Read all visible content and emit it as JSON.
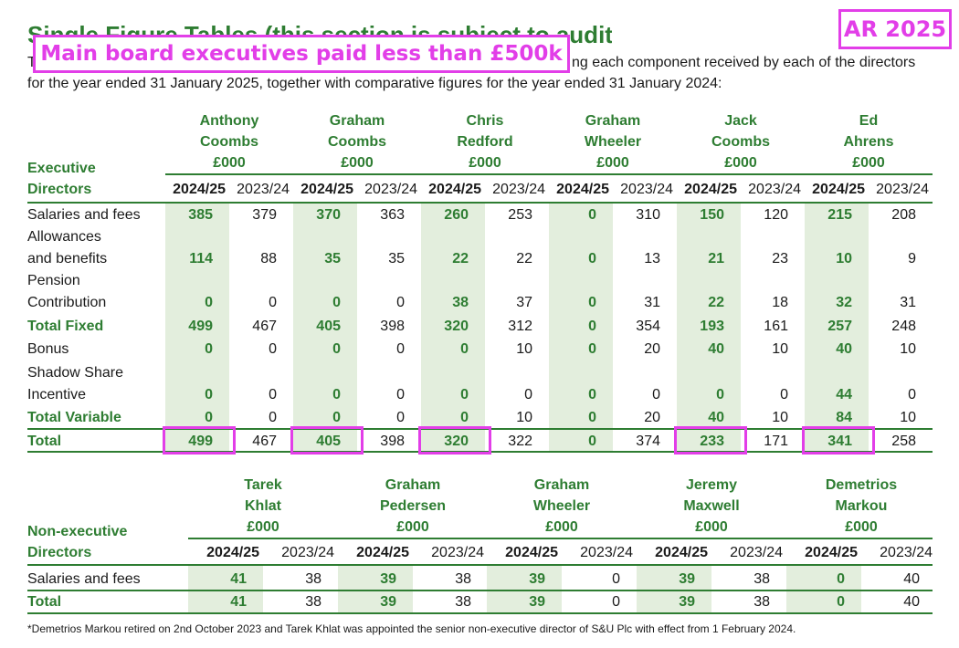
{
  "heading": {
    "title": "Single Figure Tables (this section is subject to audit)",
    "intro_lead": "The",
    "intro_line1": "ng each component received by each of the directors",
    "intro_line2": "for the year ended 31 January 2025, together with comparative figures for the year ended 31 January 2024:"
  },
  "annotations": {
    "banner": "Main board executives paid less than £500k",
    "badge": "AR 2025",
    "highlight_color": "#e23ee8"
  },
  "accent_color": "#2e7d32",
  "shade_color": "#e3eedd",
  "executive": {
    "section_label": [
      "Executive",
      "Directors"
    ],
    "year_labels": [
      "2024/25",
      "2023/24"
    ],
    "directors": [
      {
        "name": [
          "Anthony",
          "Coombs"
        ],
        "unit": "£000"
      },
      {
        "name": [
          "Graham",
          "Coombs"
        ],
        "unit": "£000"
      },
      {
        "name": [
          "Chris",
          "Redford"
        ],
        "unit": "£000"
      },
      {
        "name": [
          "Graham",
          "Wheeler"
        ],
        "unit": "£000"
      },
      {
        "name": [
          "Jack",
          "Coombs"
        ],
        "unit": "£000"
      },
      {
        "name": [
          "Ed",
          "Ahrens"
        ],
        "unit": "£000"
      }
    ],
    "rows": [
      {
        "label": [
          "Salaries and fees"
        ],
        "bold": false,
        "values": [
          "385",
          "379",
          "370",
          "363",
          "260",
          "253",
          "0",
          "310",
          "150",
          "120",
          "215",
          "208"
        ]
      },
      {
        "label": [
          "Allowances",
          "and benefits"
        ],
        "bold": false,
        "values": [
          "114",
          "88",
          "35",
          "35",
          "22",
          "22",
          "0",
          "13",
          "21",
          "23",
          "10",
          "9"
        ]
      },
      {
        "label": [
          "Pension",
          "Contribution"
        ],
        "bold": false,
        "values": [
          "0",
          "0",
          "0",
          "0",
          "38",
          "37",
          "0",
          "31",
          "22",
          "18",
          "32",
          "31"
        ]
      },
      {
        "label": [
          "Total Fixed"
        ],
        "bold": true,
        "values": [
          "499",
          "467",
          "405",
          "398",
          "320",
          "312",
          "0",
          "354",
          "193",
          "161",
          "257",
          "248"
        ]
      },
      {
        "label": [
          "Bonus"
        ],
        "bold": false,
        "values": [
          "0",
          "0",
          "0",
          "0",
          "0",
          "10",
          "0",
          "20",
          "40",
          "10",
          "40",
          "10"
        ]
      },
      {
        "label": [
          "Shadow Share",
          "Incentive"
        ],
        "bold": false,
        "values": [
          "0",
          "0",
          "0",
          "0",
          "0",
          "0",
          "0",
          "0",
          "0",
          "0",
          "44",
          "0"
        ]
      },
      {
        "label": [
          "Total Variable"
        ],
        "bold": true,
        "values": [
          "0",
          "0",
          "0",
          "0",
          "0",
          "10",
          "0",
          "20",
          "40",
          "10",
          "84",
          "10"
        ]
      },
      {
        "label": [
          "Total"
        ],
        "bold": true,
        "values": [
          "499",
          "467",
          "405",
          "398",
          "320",
          "322",
          "0",
          "374",
          "233",
          "171",
          "341",
          "258"
        ]
      }
    ],
    "highlighted_totals": [
      0,
      1,
      2,
      4,
      5
    ]
  },
  "non_executive": {
    "section_label": [
      "Non-executive",
      "Directors"
    ],
    "year_labels": [
      "2024/25",
      "2023/24"
    ],
    "directors": [
      {
        "name": [
          "Tarek",
          "Khlat"
        ],
        "unit": "£000"
      },
      {
        "name": [
          "Graham",
          "Pedersen"
        ],
        "unit": "£000"
      },
      {
        "name": [
          "Graham",
          "Wheeler"
        ],
        "unit": "£000"
      },
      {
        "name": [
          "Jeremy",
          "Maxwell"
        ],
        "unit": "£000"
      },
      {
        "name": [
          "Demetrios",
          "Markou"
        ],
        "unit": "£000"
      }
    ],
    "rows": [
      {
        "label": [
          "Salaries and fees"
        ],
        "bold": false,
        "values": [
          "41",
          "38",
          "39",
          "38",
          "39",
          "0",
          "39",
          "38",
          "0",
          "40"
        ]
      },
      {
        "label": [
          "Total"
        ],
        "bold": true,
        "values": [
          "41",
          "38",
          "39",
          "38",
          "39",
          "0",
          "39",
          "38",
          "0",
          "40"
        ]
      }
    ]
  },
  "footnote": "*Demetrios Markou retired on 2nd October 2023 and Tarek Khlat was appointed the senior non-executive director of S&U Plc with effect from 1 February 2024."
}
